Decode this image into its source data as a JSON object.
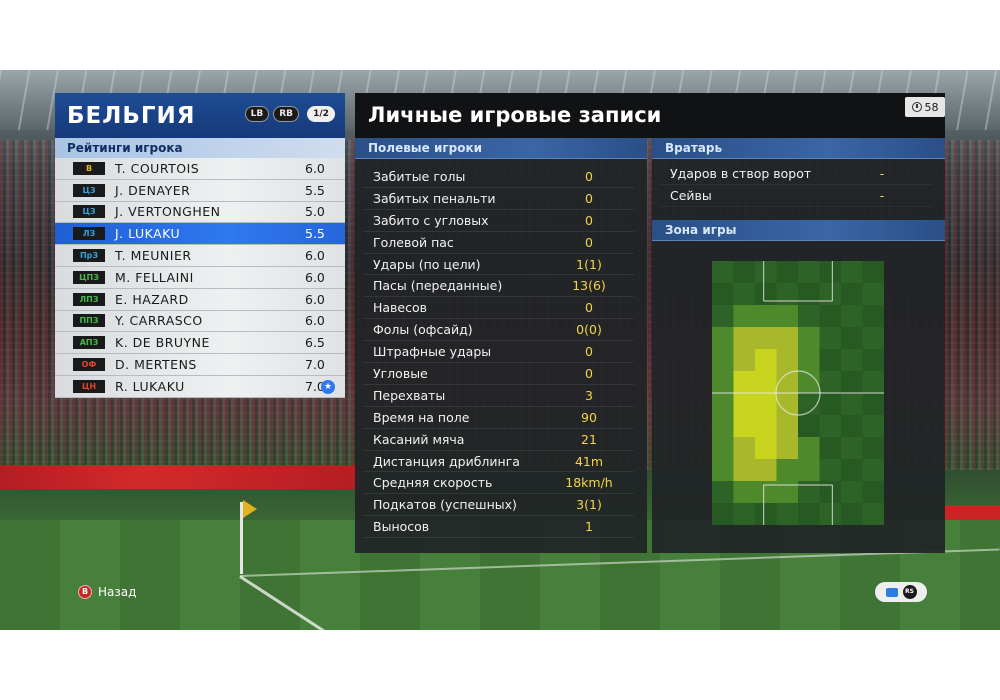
{
  "team": {
    "name": "БЕЛЬГИЯ",
    "buttons": [
      "LB",
      "RB"
    ],
    "page": "1/2",
    "ratings_title": "Рейтинги игрока",
    "players": [
      {
        "pos": "В",
        "pos_color": "#e2b21e",
        "name": "T. COURTOIS",
        "rating": "6.0"
      },
      {
        "pos": "ЦЗ",
        "pos_color": "#3aa0d8",
        "name": "J. DENAYER",
        "rating": "5.5"
      },
      {
        "pos": "ЦЗ",
        "pos_color": "#3aa0d8",
        "name": "J. VERTONGHEN",
        "rating": "5.0"
      },
      {
        "pos": "ЛЗ",
        "pos_color": "#3aa0d8",
        "name": "J. LUKAKU",
        "rating": "5.5"
      },
      {
        "pos": "ПрЗ",
        "pos_color": "#3aa0d8",
        "name": "T. MEUNIER",
        "rating": "6.0"
      },
      {
        "pos": "ЦПЗ",
        "pos_color": "#47b84a",
        "name": "M. FELLAINI",
        "rating": "6.0"
      },
      {
        "pos": "ЛПЗ",
        "pos_color": "#47b84a",
        "name": "E. HAZARD",
        "rating": "6.0"
      },
      {
        "pos": "ППЗ",
        "pos_color": "#47b84a",
        "name": "Y. CARRASCO",
        "rating": "6.0"
      },
      {
        "pos": "АПЗ",
        "pos_color": "#47b84a",
        "name": "K. DE BRUYNE",
        "rating": "6.5"
      },
      {
        "pos": "ОФ",
        "pos_color": "#e2452c",
        "name": "D. MERTENS",
        "rating": "7.0"
      },
      {
        "pos": "ЦН",
        "pos_color": "#e2452c",
        "name": "R. LUKAKU",
        "rating": "7.0"
      }
    ],
    "selected_index": 3,
    "star_icon": "★"
  },
  "records": {
    "title": "Личные игровые записи",
    "timer": "58",
    "field_players_title": "Полевые игроки",
    "goalkeeper_title": "Вратарь",
    "zone_title": "Зона игры",
    "field_stats": [
      {
        "label": "Забитые голы",
        "value": "0"
      },
      {
        "label": "Забитых пенальти",
        "value": "0"
      },
      {
        "label": "Забито с угловых",
        "value": "0"
      },
      {
        "label": "Голевой пас",
        "value": "0"
      },
      {
        "label": "Удары (по цели)",
        "value": "1(1)"
      },
      {
        "label": "Пасы (переданные)",
        "value": "13(6)"
      },
      {
        "label": "Навесов",
        "value": "0"
      },
      {
        "label": "Фолы (офсайд)",
        "value": "0(0)"
      },
      {
        "label": "Штрафные удары",
        "value": "0"
      },
      {
        "label": "Угловые",
        "value": "0"
      },
      {
        "label": "Перехваты",
        "value": "3"
      },
      {
        "label": "Время на поле",
        "value": "90"
      },
      {
        "label": "Касаний мяча",
        "value": "21"
      },
      {
        "label": "Дистанция дриблинга",
        "value": "41m"
      },
      {
        "label": "Средняя скорость",
        "value": "18km/h"
      },
      {
        "label": "Подкатов (успешных)",
        "value": "3(1)"
      },
      {
        "label": "Выносов",
        "value": "1"
      }
    ],
    "gk_stats": [
      {
        "label": "Ударов в створ ворот",
        "value": "-"
      },
      {
        "label": "Сейвы",
        "value": "-"
      }
    ],
    "heatmap": {
      "cols": 8,
      "rows": 12,
      "intensity": [
        [
          0,
          0,
          0,
          0,
          0,
          0,
          0,
          0
        ],
        [
          0,
          0,
          0,
          0,
          0,
          0,
          0,
          0
        ],
        [
          0,
          1,
          1,
          1,
          0,
          0,
          0,
          0
        ],
        [
          1,
          2,
          2,
          2,
          1,
          0,
          0,
          0
        ],
        [
          1,
          2,
          3,
          2,
          1,
          0,
          0,
          0
        ],
        [
          1,
          3,
          3,
          2,
          1,
          0,
          0,
          0
        ],
        [
          1,
          3,
          3,
          2,
          0,
          0,
          0,
          0
        ],
        [
          1,
          3,
          3,
          2,
          0,
          0,
          0,
          0
        ],
        [
          1,
          2,
          3,
          2,
          1,
          0,
          0,
          0
        ],
        [
          1,
          2,
          2,
          1,
          1,
          0,
          0,
          0
        ],
        [
          0,
          1,
          1,
          1,
          0,
          0,
          0,
          0
        ],
        [
          0,
          0,
          0,
          0,
          0,
          0,
          0,
          0
        ]
      ],
      "colors": [
        "#2a5a24",
        "#4e8a2c",
        "#a9b82a",
        "#c8d41e"
      ]
    }
  },
  "controls": {
    "back_icon": "B",
    "back_label": "Назад",
    "rs_icon": "RS"
  }
}
